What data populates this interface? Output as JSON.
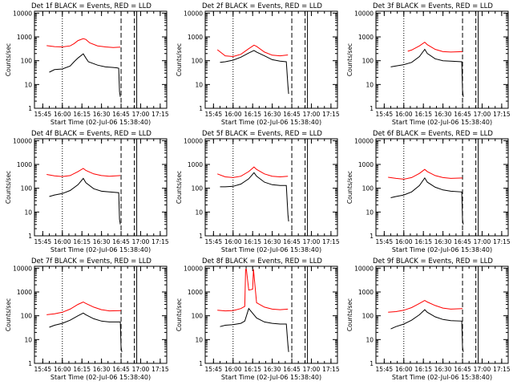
{
  "chart_data": {
    "type": "line",
    "panels": [
      {
        "title": "Det 1f BLACK = Events, RED = LLD",
        "xlabel": "Start Time (02-Jul-06 15:38:40)",
        "ylabel": "Counts/sec",
        "x_tick_labels": [
          "15:45",
          "16:00",
          "16:15",
          "16:30",
          "16:45",
          "17:00",
          "17:15"
        ],
        "y_tick_labels": [
          "1",
          "10",
          "100",
          "1000",
          "10000"
        ],
        "y_scale": "log",
        "ylim": [
          1,
          12000
        ],
        "series": [
          {
            "color": "#000000",
            "x": [
              15.833,
              15.9,
              16.0,
              16.1,
              16.15,
              16.2,
              16.267,
              16.3,
              16.333,
              16.45,
              16.55,
              16.65,
              16.7,
              16.72,
              16.73,
              16.74
            ],
            "y": [
              33,
              42,
              45,
              60,
              90,
              130,
              195,
              130,
              90,
              65,
              55,
              52,
              50,
              48,
              5,
              3
            ]
          },
          {
            "color": "#ff0000",
            "x": [
              15.8,
              15.9,
              16.0,
              16.1,
              16.15,
              16.2,
              16.267,
              16.3,
              16.35,
              16.45,
              16.55,
              16.65,
              16.74
            ],
            "y": [
              430,
              390,
              380,
              420,
              520,
              700,
              850,
              780,
              560,
              420,
              380,
              360,
              370
            ]
          }
        ],
        "markers": {
          "dotted_x": [
            16.0
          ],
          "dashed_x": [
            16.75,
            16.92
          ],
          "solid_x": [
            16.95
          ]
        }
      },
      {
        "title": "Det 2f BLACK = Events, RED = LLD",
        "xlabel": "Start Time (02-Jul-06 15:38:40)",
        "ylabel": "Counts/sec",
        "x_tick_labels": [
          "15:45",
          "16:00",
          "16:15",
          "16:30",
          "16:45",
          "17:00",
          "17:15"
        ],
        "y_tick_labels": [
          "1",
          "10",
          "100",
          "1000",
          "10000"
        ],
        "y_scale": "log",
        "ylim": [
          1,
          12000
        ],
        "series": [
          {
            "color": "#000000",
            "x": [
              15.833,
              15.9,
              16.0,
              16.1,
              16.2,
              16.267,
              16.3,
              16.4,
              16.5,
              16.6,
              16.68,
              16.7,
              16.71
            ],
            "y": [
              85,
              90,
              105,
              140,
              210,
              270,
              230,
              160,
              110,
              95,
              90,
              9,
              4
            ]
          },
          {
            "color": "#ff0000",
            "x": [
              15.8,
              15.9,
              16.0,
              16.1,
              16.2,
              16.267,
              16.3,
              16.4,
              16.5,
              16.6,
              16.7
            ],
            "y": [
              290,
              160,
              150,
              185,
              320,
              450,
              400,
              230,
              170,
              160,
              175
            ]
          }
        ],
        "markers": {
          "dotted_x": [
            16.0
          ],
          "dashed_x": [
            16.75,
            16.92
          ],
          "solid_x": [
            16.95
          ]
        }
      },
      {
        "title": "Det 3f BLACK = Events, RED = LLD",
        "xlabel": "Start Time (02-Jul-06 15:38:40)",
        "ylabel": "Counts/sec",
        "x_tick_labels": [
          "15:45",
          "16:00",
          "16:15",
          "16:30",
          "16:45",
          "17:00",
          "17:15"
        ],
        "y_tick_labels": [
          "1",
          "10",
          "100",
          "1000",
          "10000"
        ],
        "y_scale": "log",
        "ylim": [
          1,
          12000
        ],
        "series": [
          {
            "color": "#000000",
            "x": [
              15.833,
              15.9,
              16.0,
              16.1,
              16.2,
              16.267,
              16.3,
              16.4,
              16.5,
              16.6,
              16.74,
              16.75,
              16.76
            ],
            "y": [
              55,
              60,
              68,
              85,
              150,
              300,
              200,
              120,
              100,
              95,
              90,
              6,
              3
            ]
          },
          {
            "color": "#ff0000",
            "x": [
              16.05,
              16.1,
              16.2,
              16.267,
              16.3,
              16.4,
              16.5,
              16.6,
              16.75
            ],
            "y": [
              250,
              280,
              420,
              600,
              470,
              300,
              240,
              230,
              240
            ]
          }
        ],
        "markers": {
          "dotted_x": [
            16.0
          ],
          "dashed_x": [
            16.75,
            16.92
          ],
          "solid_x": [
            16.95
          ]
        }
      },
      {
        "title": "Det 4f BLACK = Events, RED = LLD",
        "xlabel": "Start Time (02-Jul-06 15:38:40)",
        "ylabel": "Counts/sec",
        "x_tick_labels": [
          "15:45",
          "16:00",
          "16:15",
          "16:30",
          "16:45",
          "17:00",
          "17:15"
        ],
        "y_tick_labels": [
          "1",
          "10",
          "100",
          "1000",
          "10000"
        ],
        "y_scale": "log",
        "ylim": [
          1,
          12000
        ],
        "series": [
          {
            "color": "#000000",
            "x": [
              15.833,
              15.9,
              16.0,
              16.1,
              16.2,
              16.267,
              16.3,
              16.4,
              16.5,
              16.6,
              16.72,
              16.73,
              16.74
            ],
            "y": [
              45,
              52,
              60,
              80,
              140,
              260,
              170,
              95,
              75,
              70,
              65,
              5,
              3
            ]
          },
          {
            "color": "#ff0000",
            "x": [
              15.8,
              15.9,
              16.0,
              16.1,
              16.2,
              16.267,
              16.3,
              16.4,
              16.5,
              16.6,
              16.74
            ],
            "y": [
              380,
              330,
              310,
              340,
              500,
              680,
              560,
              400,
              340,
              320,
              340
            ]
          }
        ],
        "markers": {
          "dotted_x": [
            16.0
          ],
          "dashed_x": [
            16.75,
            16.92
          ],
          "solid_x": [
            16.95
          ]
        }
      },
      {
        "title": "Det 5f BLACK = Events, RED = LLD",
        "xlabel": "Start Time (02-Jul-06 15:38:40)",
        "ylabel": "Counts/sec",
        "x_tick_labels": [
          "15:45",
          "16:00",
          "16:15",
          "16:30",
          "16:45",
          "17:00",
          "17:15"
        ],
        "y_tick_labels": [
          "1",
          "10",
          "100",
          "1000",
          "10000"
        ],
        "y_scale": "log",
        "ylim": [
          1,
          12000
        ],
        "series": [
          {
            "color": "#000000",
            "x": [
              15.833,
              15.9,
              16.0,
              16.1,
              16.2,
              16.267,
              16.3,
              16.4,
              16.5,
              16.6,
              16.68,
              16.7,
              16.71
            ],
            "y": [
              115,
              115,
              120,
              150,
              250,
              450,
              320,
              180,
              140,
              130,
              130,
              8,
              4
            ]
          },
          {
            "color": "#ff0000",
            "x": [
              15.8,
              15.9,
              16.0,
              16.1,
              16.2,
              16.267,
              16.3,
              16.4,
              16.5,
              16.6,
              16.7
            ],
            "y": [
              400,
              300,
              280,
              320,
              500,
              780,
              620,
              400,
              320,
              300,
              320
            ]
          }
        ],
        "markers": {
          "dotted_x": [
            16.0
          ],
          "dashed_x": [
            16.75,
            16.92
          ],
          "solid_x": [
            16.95
          ]
        }
      },
      {
        "title": "Det 6f BLACK = Events, RED = LLD",
        "xlabel": "Start Time (02-Jul-06 15:38:40)",
        "ylabel": "Counts/sec",
        "x_tick_labels": [
          "15:45",
          "16:00",
          "16:15",
          "16:30",
          "16:45",
          "17:00",
          "17:15"
        ],
        "y_tick_labels": [
          "1",
          "10",
          "100",
          "1000",
          "10000"
        ],
        "y_scale": "log",
        "ylim": [
          1,
          12000
        ],
        "series": [
          {
            "color": "#000000",
            "x": [
              15.833,
              15.9,
              16.0,
              16.1,
              16.2,
              16.267,
              16.3,
              16.4,
              16.5,
              16.6,
              16.74,
              16.75,
              16.76
            ],
            "y": [
              40,
              45,
              52,
              70,
              130,
              270,
              180,
              110,
              85,
              75,
              70,
              5,
              3
            ]
          },
          {
            "color": "#ff0000",
            "x": [
              15.8,
              15.9,
              16.0,
              16.1,
              16.2,
              16.267,
              16.3,
              16.4,
              16.5,
              16.6,
              16.75
            ],
            "y": [
              290,
              260,
              240,
              280,
              420,
              620,
              500,
              340,
              280,
              260,
              270
            ]
          }
        ],
        "markers": {
          "dotted_x": [
            16.0
          ],
          "dashed_x": [
            16.75,
            16.92
          ],
          "solid_x": [
            16.95
          ]
        }
      },
      {
        "title": "Det 7f BLACK = Events, RED = LLD",
        "xlabel": "Start Time (02-Jul-06 15:38:40)",
        "ylabel": "Counts/sec",
        "x_tick_labels": [
          "15:45",
          "16:00",
          "16:15",
          "16:30",
          "16:45",
          "17:00",
          "17:15"
        ],
        "y_tick_labels": [
          "1",
          "10",
          "100",
          "1000",
          "10000"
        ],
        "y_scale": "log",
        "ylim": [
          1,
          12000
        ],
        "series": [
          {
            "color": "#000000",
            "x": [
              15.833,
              15.9,
              16.0,
              16.1,
              16.2,
              16.267,
              16.3,
              16.4,
              16.5,
              16.6,
              16.74,
              16.75,
              16.76
            ],
            "y": [
              33,
              40,
              48,
              65,
              100,
              130,
              110,
              75,
              60,
              55,
              55,
              5,
              3
            ]
          },
          {
            "color": "#ff0000",
            "x": [
              15.8,
              15.9,
              16.0,
              16.1,
              16.2,
              16.267,
              16.3,
              16.4,
              16.5,
              16.6,
              16.75
            ],
            "y": [
              110,
              120,
              140,
              190,
              300,
              380,
              330,
              230,
              180,
              160,
              165
            ]
          }
        ],
        "markers": {
          "dotted_x": [
            16.0
          ],
          "dashed_x": [
            16.75,
            16.92
          ],
          "solid_x": [
            16.95
          ]
        }
      },
      {
        "title": "Det 8f BLACK = Events, RED = LLD",
        "xlabel": "Start Time (02-Jul-06 15:38:40)",
        "ylabel": "Counts/sec",
        "x_tick_labels": [
          "15:45",
          "16:00",
          "16:15",
          "16:30",
          "16:45",
          "17:00",
          "17:15"
        ],
        "y_tick_labels": [
          "1",
          "10",
          "100",
          "1000",
          "10000"
        ],
        "y_scale": "log",
        "ylim": [
          1,
          12000
        ],
        "series": [
          {
            "color": "#000000",
            "x": [
              15.833,
              15.9,
              16.0,
              16.1,
              16.15,
              16.2,
              16.3,
              16.4,
              16.5,
              16.6,
              16.68,
              16.7,
              16.71
            ],
            "y": [
              35,
              40,
              42,
              48,
              60,
              200,
              80,
              55,
              48,
              45,
              45,
              6,
              3
            ]
          },
          {
            "color": "#ff0000",
            "x": [
              15.8,
              15.9,
              16.0,
              16.1,
              16.15,
              16.16,
              16.17,
              16.2,
              16.25,
              16.26,
              16.3,
              16.4,
              16.5,
              16.6,
              16.7
            ],
            "y": [
              170,
              160,
              165,
              200,
              250,
              9000,
              9000,
              1200,
              1300,
              9000,
              350,
              230,
              190,
              180,
              190
            ]
          }
        ],
        "markers": {
          "dotted_x": [
            16.0
          ],
          "dashed_x": [
            16.75,
            16.92
          ],
          "solid_x": [
            16.95
          ]
        }
      },
      {
        "title": "Det 9f BLACK = Events, RED = LLD",
        "xlabel": "Start Time (02-Jul-06 15:38:40)",
        "ylabel": "Counts/sec",
        "x_tick_labels": [
          "15:45",
          "16:00",
          "16:15",
          "16:30",
          "16:45",
          "17:00",
          "17:15"
        ],
        "y_tick_labels": [
          "1",
          "10",
          "100",
          "1000",
          "10000"
        ],
        "y_scale": "log",
        "ylim": [
          1,
          12000
        ],
        "series": [
          {
            "color": "#000000",
            "x": [
              15.833,
              15.9,
              16.0,
              16.1,
              16.2,
              16.267,
              16.3,
              16.4,
              16.5,
              16.6,
              16.74,
              16.75,
              16.76
            ],
            "y": [
              28,
              35,
              45,
              65,
              110,
              180,
              140,
              90,
              70,
              62,
              60,
              5,
              3
            ]
          },
          {
            "color": "#ff0000",
            "x": [
              15.8,
              15.9,
              16.0,
              16.1,
              16.2,
              16.267,
              16.3,
              16.4,
              16.5,
              16.6,
              16.75
            ],
            "y": [
              140,
              150,
              170,
              220,
              330,
              440,
              380,
              270,
              210,
              190,
              200
            ]
          }
        ],
        "markers": {
          "dotted_x": [
            16.0
          ],
          "dashed_x": [
            16.75,
            16.92
          ],
          "solid_x": [
            16.95
          ]
        }
      }
    ]
  }
}
